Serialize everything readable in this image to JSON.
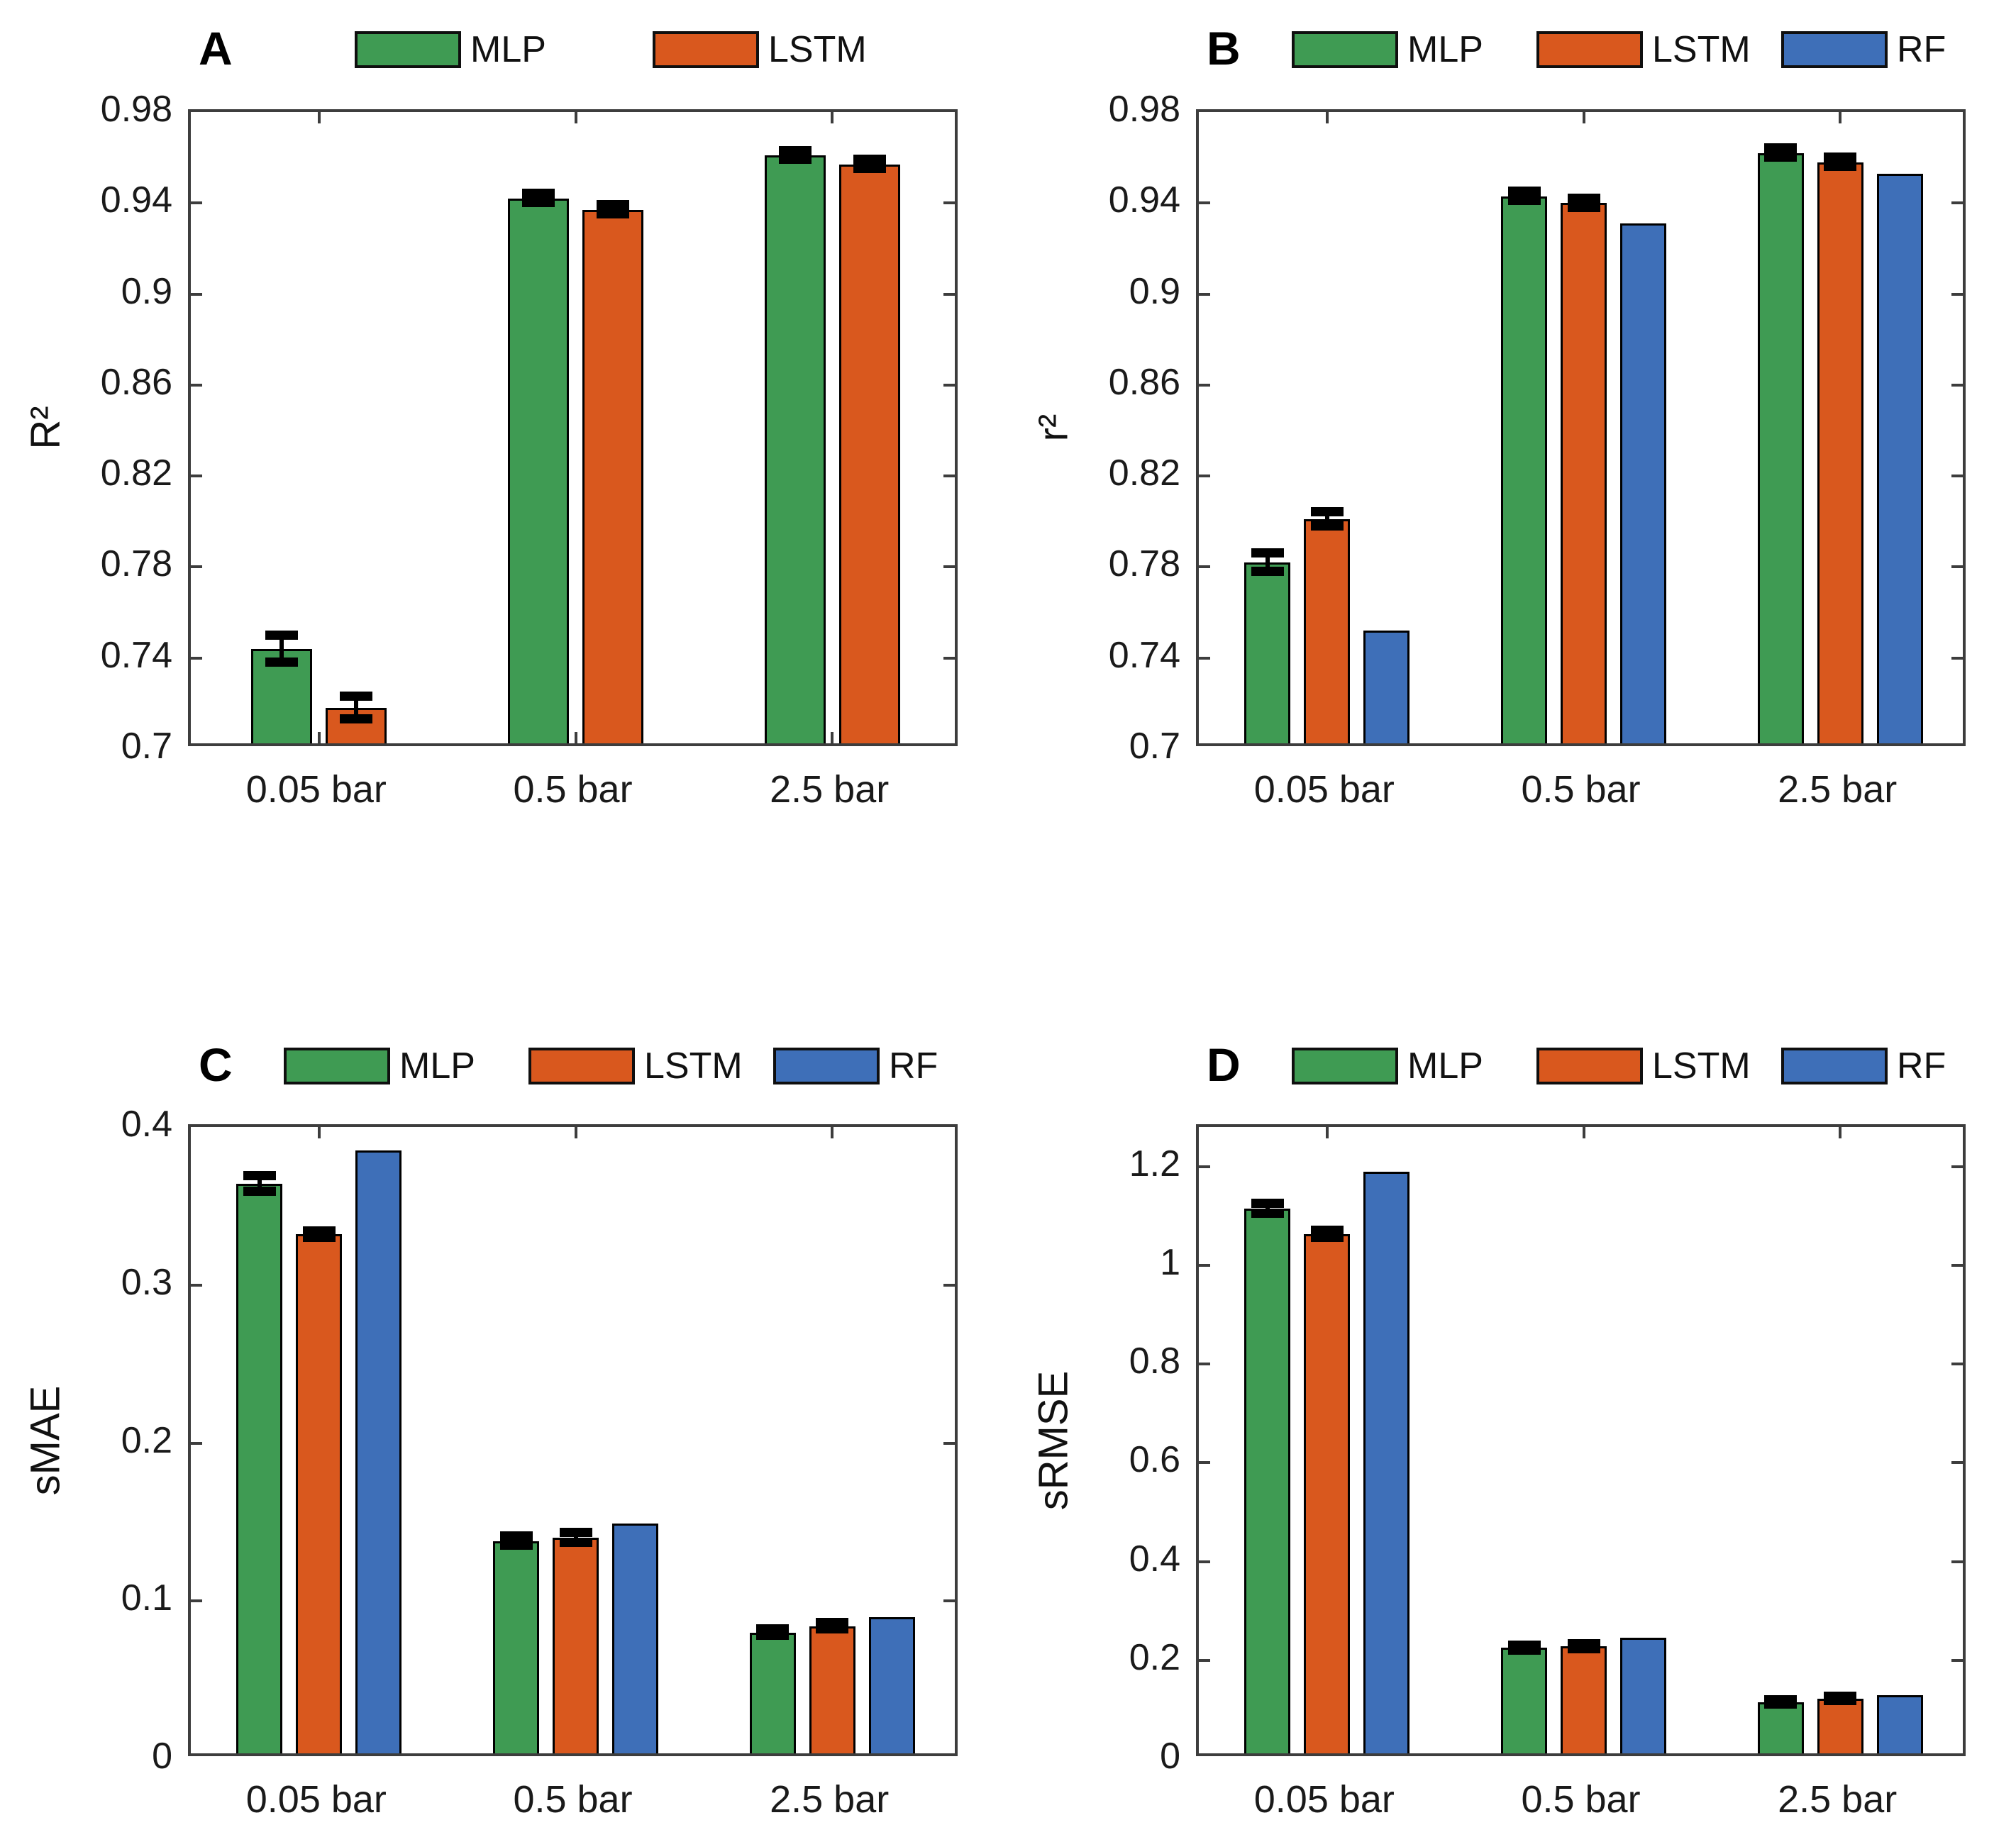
{
  "figure_background": "#ffffff",
  "colors": {
    "MLP": "#3f9b53",
    "LSTM": "#d9581e",
    "RF": "#3e6fb8",
    "axis": "#3d3d3d",
    "error_bar": "#000000"
  },
  "chart_data": [
    {
      "type": "bar",
      "label": "A",
      "ylabel": "R²",
      "categories": [
        "0.05 bar",
        "0.5 bar",
        "2.5 bar"
      ],
      "ylim": [
        0.7,
        0.98
      ],
      "yticks": [
        0.7,
        0.74,
        0.78,
        0.82,
        0.86,
        0.9,
        0.94,
        0.98
      ],
      "ytick_labels": [
        "0.7",
        "0.74",
        "0.78",
        "0.82",
        "0.86",
        "0.9",
        "0.94",
        "0.98"
      ],
      "grid": false,
      "legend_position": "top",
      "series": [
        {
          "name": "MLP",
          "color": "#3f9b53",
          "values": [
            0.744,
            0.942,
            0.961
          ],
          "errors": [
            0.006,
            0.002,
            0.002
          ]
        },
        {
          "name": "LSTM",
          "color": "#d9581e",
          "values": [
            0.718,
            0.937,
            0.957
          ],
          "errors": [
            0.005,
            0.002,
            0.002
          ]
        }
      ]
    },
    {
      "type": "bar",
      "label": "B",
      "ylabel": "r²",
      "categories": [
        "0.05 bar",
        "0.5 bar",
        "2.5 bar"
      ],
      "ylim": [
        0.7,
        0.98
      ],
      "yticks": [
        0.7,
        0.74,
        0.78,
        0.82,
        0.86,
        0.9,
        0.94,
        0.98
      ],
      "ytick_labels": [
        "0.7",
        "0.74",
        "0.78",
        "0.82",
        "0.86",
        "0.9",
        "0.94",
        "0.98"
      ],
      "grid": false,
      "legend_position": "top",
      "series": [
        {
          "name": "MLP",
          "color": "#3f9b53",
          "values": [
            0.782,
            0.943,
            0.962
          ],
          "errors": [
            0.004,
            0.002,
            0.002
          ]
        },
        {
          "name": "LSTM",
          "color": "#d9581e",
          "values": [
            0.801,
            0.94,
            0.958
          ],
          "errors": [
            0.003,
            0.002,
            0.002
          ]
        },
        {
          "name": "RF",
          "color": "#3e6fb8",
          "values": [
            0.752,
            0.931,
            0.953
          ],
          "errors": [
            0,
            0,
            0
          ]
        }
      ]
    },
    {
      "type": "bar",
      "label": "C",
      "ylabel": "sMAE",
      "categories": [
        "0.05 bar",
        "0.5 bar",
        "2.5 bar"
      ],
      "ylim": [
        0,
        0.4
      ],
      "yticks": [
        0,
        0.1,
        0.2,
        0.3,
        0.4
      ],
      "ytick_labels": [
        "0",
        "0.1",
        "0.2",
        "0.3",
        "0.4"
      ],
      "grid": false,
      "legend_position": "top",
      "series": [
        {
          "name": "MLP",
          "color": "#3f9b53",
          "values": [
            0.364,
            0.138,
            0.08
          ],
          "errors": [
            0.005,
            0.003,
            0.002
          ]
        },
        {
          "name": "LSTM",
          "color": "#d9581e",
          "values": [
            0.332,
            0.14,
            0.084
          ],
          "errors": [
            0.002,
            0.003,
            0.002
          ]
        },
        {
          "name": "RF",
          "color": "#3e6fb8",
          "values": [
            0.385,
            0.149,
            0.09
          ],
          "errors": [
            0,
            0,
            0
          ]
        }
      ]
    },
    {
      "type": "bar",
      "label": "D",
      "ylabel": "sRMSE",
      "categories": [
        "0.05 bar",
        "0.5 bar",
        "2.5 bar"
      ],
      "ylim": [
        0,
        1.28
      ],
      "yticks": [
        0,
        0.2,
        0.4,
        0.6,
        0.8,
        1,
        1.2
      ],
      "ytick_labels": [
        "0",
        "0.2",
        "0.4",
        "0.6",
        "0.8",
        "1",
        "1.2"
      ],
      "grid": false,
      "legend_position": "top",
      "series": [
        {
          "name": "MLP",
          "color": "#3f9b53",
          "values": [
            1.115,
            0.225,
            0.115
          ],
          "errors": [
            0.01,
            0.005,
            0.004
          ]
        },
        {
          "name": "LSTM",
          "color": "#d9581e",
          "values": [
            1.063,
            0.228,
            0.122
          ],
          "errors": [
            0.007,
            0.005,
            0.004
          ]
        },
        {
          "name": "RF",
          "color": "#3e6fb8",
          "values": [
            1.19,
            0.245,
            0.13
          ],
          "errors": [
            0,
            0,
            0
          ]
        }
      ]
    }
  ]
}
